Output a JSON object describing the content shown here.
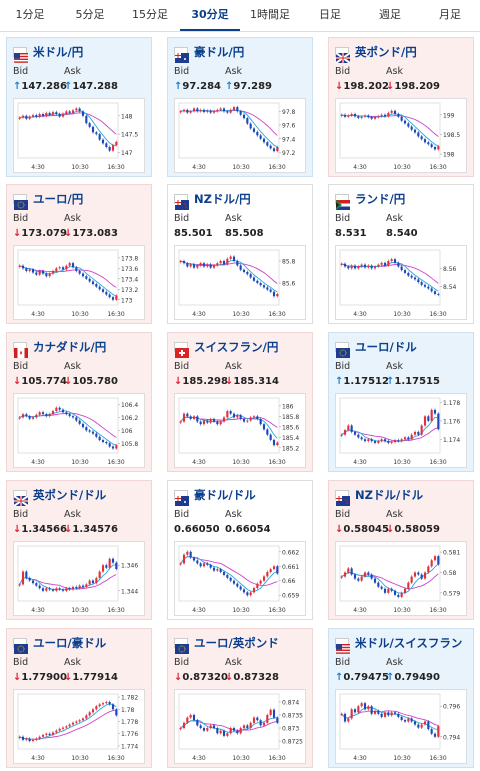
{
  "tabs": [
    {
      "label": "1分足",
      "active": false
    },
    {
      "label": "5分足",
      "active": false
    },
    {
      "label": "15分足",
      "active": false
    },
    {
      "label": "30分足",
      "active": true
    },
    {
      "label": "1時間足",
      "active": false
    },
    {
      "label": "日足",
      "active": false
    },
    {
      "label": "週足",
      "active": false
    },
    {
      "label": "月足",
      "active": false
    }
  ],
  "labels": {
    "bid": "Bid",
    "ask": "Ask"
  },
  "colors": {
    "up": "#1e80d8",
    "down": "#d23",
    "candle_up": "#e0303a",
    "candle_down": "#1b47b8",
    "ma_short": "#2aa7e0",
    "ma_long": "#cc44cc"
  },
  "cards": [
    {
      "pair": "米ドル/円",
      "flag": "us-jp",
      "dir": "up",
      "bid": "147.286",
      "ask": "147.288",
      "chart_data": {
        "type": "candlestick",
        "x_ticks": [
          "4:30",
          "10:30",
          "16:30"
        ],
        "y_ticks": [
          148,
          147.5,
          147
        ],
        "ylim": [
          146.85,
          148.35
        ],
        "closes": [
          147.95,
          148.0,
          147.92,
          147.98,
          148.02,
          147.97,
          148.05,
          148.0,
          148.08,
          148.03,
          148.1,
          148.05,
          147.98,
          148.06,
          148.12,
          148.08,
          148.15,
          148.2,
          148.12,
          148.0,
          147.8,
          147.7,
          147.55,
          147.5,
          147.35,
          147.25,
          147.15,
          147.05,
          147.2,
          147.29
        ]
      }
    },
    {
      "pair": "豪ドル/円",
      "flag": "au-jp",
      "dir": "up",
      "bid": "97.284",
      "ask": "97.289",
      "chart_data": {
        "type": "candlestick",
        "x_ticks": [
          "4:30",
          "10:30",
          "16:30"
        ],
        "y_ticks": [
          97.8,
          97.6,
          97.4,
          97.2
        ],
        "ylim": [
          97.12,
          97.92
        ],
        "closes": [
          97.8,
          97.82,
          97.78,
          97.8,
          97.84,
          97.8,
          97.82,
          97.79,
          97.81,
          97.78,
          97.8,
          97.82,
          97.84,
          97.8,
          97.78,
          97.82,
          97.86,
          97.8,
          97.75,
          97.7,
          97.62,
          97.55,
          97.5,
          97.45,
          97.4,
          97.35,
          97.3,
          97.26,
          97.22,
          97.28
        ]
      }
    },
    {
      "pair": "英ポンド/円",
      "flag": "gb-jp",
      "dir": "down",
      "bid": "198.202",
      "ask": "198.209",
      "chart_data": {
        "type": "candlestick",
        "x_ticks": [
          "4:30",
          "10:30",
          "16:30"
        ],
        "y_ticks": [
          199,
          198.5,
          198
        ],
        "ylim": [
          197.9,
          199.3
        ],
        "closes": [
          199.0,
          198.95,
          198.98,
          199.02,
          198.96,
          198.92,
          198.95,
          198.98,
          198.94,
          198.9,
          198.94,
          198.97,
          199.0,
          198.96,
          199.05,
          199.1,
          199.02,
          198.95,
          198.85,
          198.78,
          198.7,
          198.62,
          198.55,
          198.45,
          198.38,
          198.3,
          198.25,
          198.18,
          198.12,
          198.2
        ]
      }
    },
    {
      "pair": "ユーロ/円",
      "flag": "eu-jp",
      "dir": "down",
      "bid": "173.079",
      "ask": "173.083",
      "chart_data": {
        "type": "candlestick",
        "x_ticks": [
          "4:30",
          "10:30",
          "16:30"
        ],
        "y_ticks": [
          173.8,
          173.6,
          173.4,
          173.2,
          173
        ],
        "ylim": [
          172.9,
          173.95
        ],
        "closes": [
          173.65,
          173.6,
          173.55,
          173.58,
          173.52,
          173.48,
          173.55,
          173.5,
          173.45,
          173.5,
          173.55,
          173.6,
          173.62,
          173.58,
          173.65,
          173.7,
          173.62,
          173.55,
          173.5,
          173.45,
          173.4,
          173.35,
          173.3,
          173.25,
          173.2,
          173.15,
          173.1,
          173.05,
          173.0,
          173.08
        ]
      }
    },
    {
      "pair": "NZドル/円",
      "flag": "nz-jp",
      "dir": "flat",
      "bid": "85.501",
      "ask": "85.508",
      "chart_data": {
        "type": "candlestick",
        "x_ticks": [
          "4:30",
          "10:30",
          "16:30"
        ],
        "y_ticks": [
          85.8,
          85.6
        ],
        "ylim": [
          85.4,
          85.9
        ],
        "closes": [
          85.8,
          85.78,
          85.75,
          85.77,
          85.74,
          85.76,
          85.78,
          85.75,
          85.77,
          85.74,
          85.76,
          85.78,
          85.8,
          85.77,
          85.82,
          85.84,
          85.8,
          85.76,
          85.72,
          85.7,
          85.68,
          85.65,
          85.62,
          85.6,
          85.58,
          85.56,
          85.54,
          85.52,
          85.48,
          85.5
        ]
      }
    },
    {
      "pair": "ランド/円",
      "flag": "za-jp",
      "dir": "flat",
      "bid": "8.531",
      "ask": "8.540",
      "chart_data": {
        "type": "candlestick",
        "x_ticks": [
          "4:30",
          "10:30",
          "16:30"
        ],
        "y_ticks": [
          8.56,
          8.54
        ],
        "ylim": [
          8.52,
          8.58
        ],
        "closes": [
          8.565,
          8.562,
          8.56,
          8.563,
          8.56,
          8.562,
          8.564,
          8.561,
          8.563,
          8.56,
          8.562,
          8.564,
          8.566,
          8.563,
          8.568,
          8.57,
          8.566,
          8.562,
          8.558,
          8.555,
          8.552,
          8.55,
          8.548,
          8.545,
          8.542,
          8.54,
          8.538,
          8.535,
          8.532,
          8.531
        ]
      }
    },
    {
      "pair": "カナダドル/円",
      "flag": "ca-jp",
      "dir": "down",
      "bid": "105.774",
      "ask": "105.780",
      "chart_data": {
        "type": "candlestick",
        "x_ticks": [
          "4:30",
          "10:30",
          "16:30"
        ],
        "y_ticks": [
          106.4,
          106.2,
          106,
          105.8
        ],
        "ylim": [
          105.65,
          106.5
        ],
        "closes": [
          106.2,
          106.25,
          106.22,
          106.18,
          106.2,
          106.24,
          106.28,
          106.25,
          106.22,
          106.25,
          106.3,
          106.35,
          106.32,
          106.28,
          106.25,
          106.22,
          106.2,
          106.15,
          106.1,
          106.05,
          106.0,
          105.98,
          105.95,
          105.9,
          105.85,
          105.82,
          105.8,
          105.75,
          105.72,
          105.77
        ]
      }
    },
    {
      "pair": "スイスフラン/円",
      "flag": "ch-jp",
      "dir": "down",
      "bid": "185.298",
      "ask": "185.314",
      "chart_data": {
        "type": "candlestick",
        "x_ticks": [
          "4:30",
          "10:30",
          "16:30"
        ],
        "y_ticks": [
          186,
          185.8,
          185.6,
          185.4,
          185.2
        ],
        "ylim": [
          185.1,
          186.15
        ],
        "closes": [
          185.7,
          185.85,
          185.8,
          185.75,
          185.8,
          185.7,
          185.65,
          185.72,
          185.68,
          185.75,
          185.7,
          185.65,
          185.7,
          185.78,
          185.9,
          185.85,
          185.78,
          185.82,
          185.75,
          185.7,
          185.72,
          185.78,
          185.8,
          185.75,
          185.65,
          185.55,
          185.45,
          185.35,
          185.25,
          185.3
        ]
      }
    },
    {
      "pair": "ユーロ/ドル",
      "flag": "eu-us",
      "dir": "up",
      "bid": "1.17512",
      "ask": "1.17515",
      "chart_data": {
        "type": "candlestick",
        "x_ticks": [
          "4:30",
          "10:30",
          "16:30"
        ],
        "y_ticks": [
          1.178,
          1.176,
          1.174
        ],
        "ylim": [
          1.1725,
          1.1785
        ],
        "closes": [
          1.1745,
          1.175,
          1.1755,
          1.1748,
          1.1745,
          1.1742,
          1.174,
          1.1738,
          1.174,
          1.1738,
          1.1736,
          1.1738,
          1.174,
          1.1738,
          1.1736,
          1.1737,
          1.1739,
          1.1738,
          1.174,
          1.1742,
          1.174,
          1.1745,
          1.1748,
          1.1745,
          1.1755,
          1.1765,
          1.176,
          1.1772,
          1.1768,
          1.1751
        ]
      }
    },
    {
      "pair": "英ポンド/ドル",
      "flag": "gb-us",
      "dir": "down",
      "bid": "1.34566",
      "ask": "1.34576",
      "chart_data": {
        "type": "candlestick",
        "x_ticks": [
          "4:30",
          "10:30",
          "16:30"
        ],
        "y_ticks": [
          1.346,
          1.344
        ],
        "ylim": [
          1.3432,
          1.3475
        ],
        "closes": [
          1.3445,
          1.3455,
          1.345,
          1.3448,
          1.3446,
          1.3444,
          1.3442,
          1.344,
          1.3442,
          1.3441,
          1.344,
          1.3442,
          1.3441,
          1.344,
          1.3442,
          1.3441,
          1.3443,
          1.3442,
          1.3444,
          1.3443,
          1.3445,
          1.3448,
          1.3446,
          1.345,
          1.3455,
          1.346,
          1.3458,
          1.3465,
          1.3462,
          1.3457
        ]
      }
    },
    {
      "pair": "豪ドル/ドル",
      "flag": "au-us",
      "dir": "flat",
      "bid": "0.66050",
      "ask": "0.66054",
      "chart_data": {
        "type": "candlestick",
        "x_ticks": [
          "4:30",
          "10:30",
          "16:30"
        ],
        "y_ticks": [
          0.662,
          0.661,
          0.66,
          0.659
        ],
        "ylim": [
          0.6586,
          0.6624
        ],
        "closes": [
          0.6612,
          0.6618,
          0.662,
          0.6616,
          0.6614,
          0.6612,
          0.661,
          0.6612,
          0.6611,
          0.6609,
          0.6607,
          0.6608,
          0.6606,
          0.6604,
          0.6602,
          0.66,
          0.6598,
          0.6596,
          0.6594,
          0.6592,
          0.659,
          0.6592,
          0.6595,
          0.6598,
          0.66,
          0.6603,
          0.6606,
          0.6608,
          0.661,
          0.6605
        ]
      }
    },
    {
      "pair": "NZドル/ドル",
      "flag": "nz-us",
      "dir": "down",
      "bid": "0.58045",
      "ask": "0.58059",
      "chart_data": {
        "type": "candlestick",
        "x_ticks": [
          "4:30",
          "10:30",
          "16:30"
        ],
        "y_ticks": [
          0.581,
          0.58,
          0.579
        ],
        "ylim": [
          0.5786,
          0.5813
        ],
        "closes": [
          0.5798,
          0.58,
          0.5802,
          0.5799,
          0.5797,
          0.5796,
          0.5798,
          0.58,
          0.5799,
          0.5797,
          0.5795,
          0.5793,
          0.5792,
          0.579,
          0.5792,
          0.5791,
          0.5789,
          0.5788,
          0.579,
          0.5792,
          0.5795,
          0.5798,
          0.58,
          0.5799,
          0.5797,
          0.58,
          0.5803,
          0.5806,
          0.5808,
          0.5804
        ]
      }
    },
    {
      "pair": "ユーロ/豪ドル",
      "flag": "eu-au",
      "dir": "down",
      "bid": "1.77900",
      "ask": "1.77914",
      "chart_data": {
        "type": "candlestick",
        "x_ticks": [
          "4:30",
          "10:30",
          "16:30"
        ],
        "y_ticks": [
          1.782,
          1.78,
          1.778,
          1.776,
          1.774
        ],
        "ylim": [
          1.7735,
          1.7825
        ],
        "closes": [
          1.7755,
          1.775,
          1.7752,
          1.7748,
          1.775,
          1.7752,
          1.7755,
          1.7758,
          1.776,
          1.7758,
          1.7762,
          1.7765,
          1.7768,
          1.777,
          1.7772,
          1.7775,
          1.7778,
          1.778,
          1.7782,
          1.7785,
          1.779,
          1.7795,
          1.78,
          1.7805,
          1.7808,
          1.781,
          1.7812,
          1.7808,
          1.78,
          1.779
        ]
      }
    },
    {
      "pair": "ユーロ/英ポンド",
      "flag": "eu-gb",
      "dir": "down",
      "bid": "0.87320",
      "ask": "0.87328",
      "chart_data": {
        "type": "candlestick",
        "x_ticks": [
          "4:30",
          "10:30",
          "16:30"
        ],
        "y_ticks": [
          0.874,
          0.8735,
          0.873,
          0.8725
        ],
        "ylim": [
          0.8722,
          0.8743
        ],
        "closes": [
          0.873,
          0.8732,
          0.8734,
          0.8735,
          0.8733,
          0.8731,
          0.873,
          0.8729,
          0.873,
          0.8731,
          0.873,
          0.8728,
          0.8729,
          0.8727,
          0.8728,
          0.873,
          0.8729,
          0.8728,
          0.873,
          0.8731,
          0.873,
          0.8732,
          0.8734,
          0.8733,
          0.8731,
          0.8732,
          0.8735,
          0.8737,
          0.8734,
          0.8732
        ]
      }
    },
    {
      "pair": "米ドル/スイスフラン",
      "flag": "us-ch",
      "dir": "up",
      "bid": "0.79475",
      "ask": "0.79490",
      "chart_data": {
        "type": "candlestick",
        "x_ticks": [
          "4:30",
          "10:30",
          "16:30"
        ],
        "y_ticks": [
          0.796,
          0.794
        ],
        "ylim": [
          0.7932,
          0.7968
        ],
        "closes": [
          0.7955,
          0.795,
          0.7952,
          0.7958,
          0.7956,
          0.796,
          0.7962,
          0.7958,
          0.796,
          0.7955,
          0.7957,
          0.7955,
          0.7953,
          0.7956,
          0.7954,
          0.7956,
          0.7955,
          0.7953,
          0.7951,
          0.795,
          0.7952,
          0.795,
          0.7948,
          0.7946,
          0.7948,
          0.795,
          0.7945,
          0.7942,
          0.794,
          0.7947
        ]
      }
    }
  ]
}
